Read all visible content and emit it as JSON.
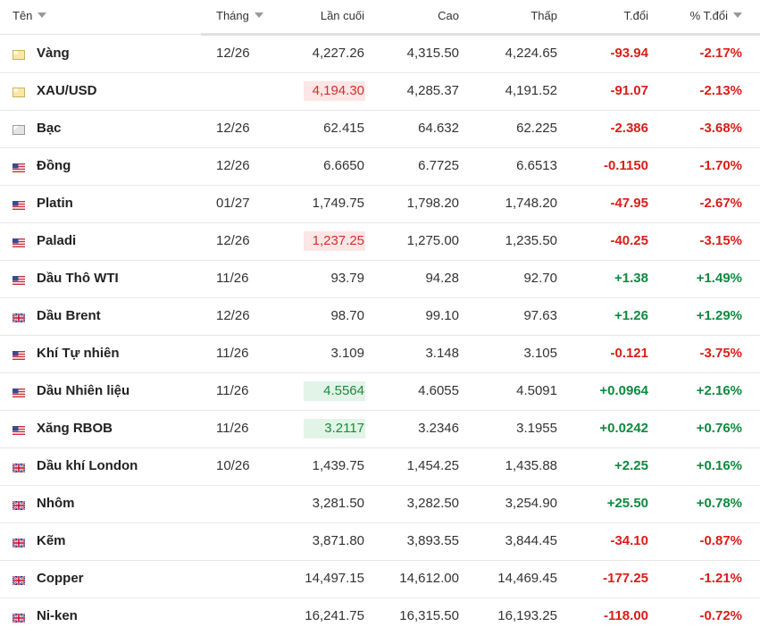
{
  "header": {
    "name": "Tên",
    "month": "Tháng",
    "last": "Lần cuối",
    "high": "Cao",
    "low": "Thấp",
    "change": "T.đổi",
    "change_pct": "% T.đổi"
  },
  "rows": [
    {
      "flag": "gold",
      "name": "Vàng",
      "month": "12/26",
      "last": "4,227.26",
      "high": "4,315.50",
      "low": "4,224.65",
      "change": "-93.94",
      "change_pct": "-2.17%"
    },
    {
      "flag": "gold",
      "name": "XAU/USD",
      "month": null,
      "last": "4,194.30",
      "flash": "down",
      "high": "4,285.37",
      "low": "4,191.52",
      "change": "-91.07",
      "change_pct": "-2.13%"
    },
    {
      "flag": "silver",
      "name": "Bạc",
      "month": "12/26",
      "last": "62.415",
      "high": "64.632",
      "low": "62.225",
      "change": "-2.386",
      "change_pct": "-3.68%"
    },
    {
      "flag": "us",
      "name": "Đồng",
      "month": "12/26",
      "last": "6.6650",
      "high": "6.7725",
      "low": "6.6513",
      "change": "-0.1150",
      "change_pct": "-1.70%"
    },
    {
      "flag": "us",
      "name": "Platin",
      "month": "01/27",
      "last": "1,749.75",
      "high": "1,798.20",
      "low": "1,748.20",
      "change": "-47.95",
      "change_pct": "-2.67%"
    },
    {
      "flag": "us",
      "name": "Paladi",
      "month": "12/26",
      "last": "1,237.25",
      "flash": "down",
      "high": "1,275.00",
      "low": "1,235.50",
      "change": "-40.25",
      "change_pct": "-3.15%"
    },
    {
      "flag": "us",
      "name": "Dầu Thô WTI",
      "month": "11/26",
      "last": "93.79",
      "high": "94.28",
      "low": "92.70",
      "change": "+1.38",
      "change_pct": "+1.49%"
    },
    {
      "flag": "uk",
      "name": "Dầu Brent",
      "month": "12/26",
      "last": "98.70",
      "high": "99.10",
      "low": "97.63",
      "change": "+1.26",
      "change_pct": "+1.29%"
    },
    {
      "flag": "us",
      "name": "Khí Tự nhiên",
      "month": "11/26",
      "last": "3.109",
      "high": "3.148",
      "low": "3.105",
      "change": "-0.121",
      "change_pct": "-3.75%"
    },
    {
      "flag": "us",
      "name": "Dầu Nhiên liệu",
      "month": "11/26",
      "last": "4.5564",
      "flash": "up",
      "high": "4.6055",
      "low": "4.5091",
      "change": "+0.0964",
      "change_pct": "+2.16%"
    },
    {
      "flag": "us",
      "name": "Xăng RBOB",
      "month": "11/26",
      "last": "3.2117",
      "flash": "up",
      "high": "3.2346",
      "low": "3.1955",
      "change": "+0.0242",
      "change_pct": "+0.76%"
    },
    {
      "flag": "uk",
      "name": "Dầu khí London",
      "month": "10/26",
      "last": "1,439.75",
      "high": "1,454.25",
      "low": "1,435.88",
      "change": "+2.25",
      "change_pct": "+0.16%"
    },
    {
      "flag": "uk",
      "name": "Nhôm",
      "month": null,
      "last": "3,281.50",
      "high": "3,282.50",
      "low": "3,254.90",
      "change": "+25.50",
      "change_pct": "+0.78%"
    },
    {
      "flag": "uk",
      "name": "Kẽm",
      "month": null,
      "last": "3,871.80",
      "high": "3,893.55",
      "low": "3,844.45",
      "change": "-34.10",
      "change_pct": "-0.87%"
    },
    {
      "flag": "uk",
      "name": "Copper",
      "month": null,
      "last": "14,497.15",
      "high": "14,612.00",
      "low": "14,469.45",
      "change": "-177.25",
      "change_pct": "-1.21%"
    },
    {
      "flag": "uk",
      "name": "Ni-ken",
      "month": null,
      "last": "16,241.75",
      "high": "16,315.50",
      "low": "16,193.25",
      "change": "-118.00",
      "change_pct": "-0.72%"
    }
  ]
}
